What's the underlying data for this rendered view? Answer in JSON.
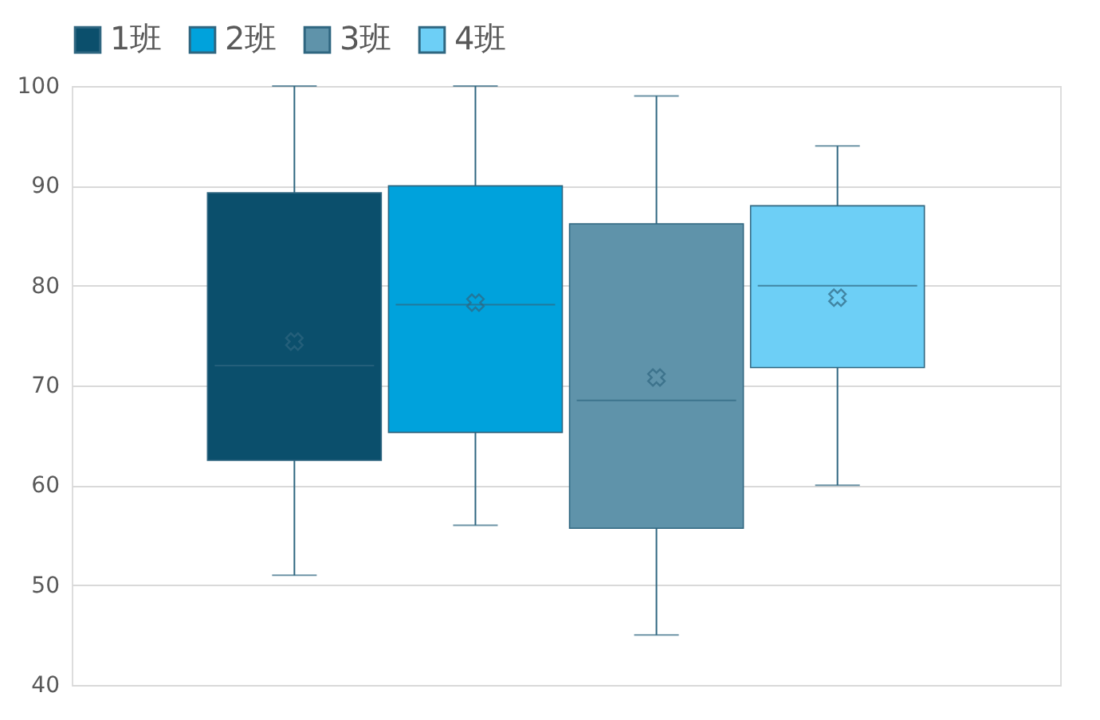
{
  "chart_data": {
    "type": "box",
    "categories": [
      null
    ],
    "legend": "top",
    "grid": "y",
    "ylim": [
      40,
      100
    ],
    "yticks": [
      40,
      50,
      60,
      70,
      80,
      90,
      100
    ],
    "series": [
      {
        "name": "1班",
        "color": "#0b4f6c",
        "boxes": [
          {
            "low": 51,
            "q1": 62.5,
            "median": 72,
            "q3": 89.3,
            "high": 100,
            "mean": 74.4
          }
        ]
      },
      {
        "name": "2班",
        "color": "#00a2dc",
        "boxes": [
          {
            "low": 56,
            "q1": 65.3,
            "median": 78.1,
            "q3": 90,
            "high": 100,
            "mean": 78.3
          }
        ]
      },
      {
        "name": "3班",
        "color": "#5f93aa",
        "boxes": [
          {
            "low": 45,
            "q1": 55.7,
            "median": 68.5,
            "q3": 86.2,
            "high": 99,
            "mean": 70.8
          }
        ]
      },
      {
        "name": "4班",
        "color": "#6dcff6",
        "boxes": [
          {
            "low": 60,
            "q1": 71.8,
            "median": 80,
            "q3": 88,
            "high": 94,
            "mean": 78.8
          }
        ]
      }
    ]
  }
}
